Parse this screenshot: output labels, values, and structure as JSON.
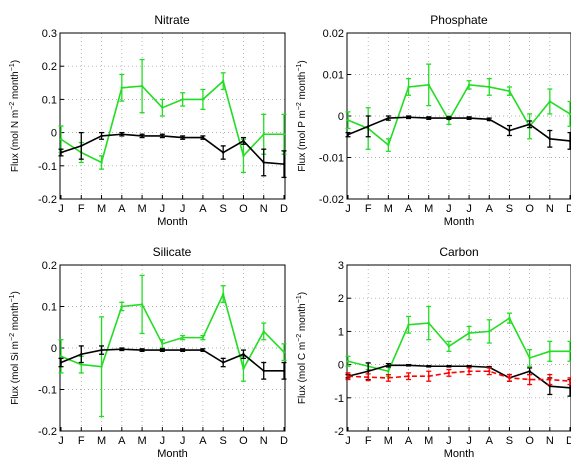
{
  "months_axis_label": "Month",
  "colors": {
    "green": "#22dd22",
    "black": "#000000",
    "red": "#ff0000"
  },
  "chart_data": [
    {
      "type": "line",
      "title": "Nitrate",
      "xlabel": "Month",
      "ylabel_parts": [
        "Flux (mol N m",
        "−2",
        " month",
        "−1",
        ")"
      ],
      "categories": [
        "J",
        "F",
        "M",
        "A",
        "M",
        "J",
        "J",
        "A",
        "S",
        "O",
        "N",
        "D"
      ],
      "ylim": [
        -0.2,
        0.3
      ],
      "yticks": [
        -0.2,
        -0.1,
        0,
        0.1,
        0.2,
        0.3
      ],
      "ytick_labels": [
        "-0.2",
        "-0.1",
        "0",
        "0.1",
        "0.2",
        "0.3"
      ],
      "series": [
        {
          "color": "#22dd22",
          "dash": false,
          "values": [
            -0.02,
            -0.06,
            -0.09,
            0.135,
            0.14,
            0.075,
            0.1,
            0.1,
            0.155,
            -0.07,
            -0.005,
            -0.005
          ],
          "errors": [
            0.04,
            0.03,
            0.02,
            0.04,
            0.08,
            0.025,
            0.02,
            0.03,
            0.025,
            0.05,
            0.06,
            0.06
          ]
        },
        {
          "color": "#000000",
          "dash": false,
          "values": [
            -0.06,
            -0.04,
            -0.01,
            -0.005,
            -0.01,
            -0.01,
            -0.015,
            -0.015,
            -0.06,
            -0.025,
            -0.09,
            -0.095
          ],
          "errors": [
            0.01,
            0.04,
            0.01,
            0.005,
            0.005,
            0.005,
            0.005,
            0.005,
            0.02,
            0.01,
            0.04,
            0.04
          ]
        }
      ]
    },
    {
      "type": "line",
      "title": "Phosphate",
      "xlabel": "Month",
      "ylabel_parts": [
        "Flux (mol P m",
        "−2",
        " month",
        "−1",
        ")"
      ],
      "categories": [
        "J",
        "F",
        "M",
        "A",
        "M",
        "J",
        "J",
        "A",
        "S",
        "O",
        "N",
        "D"
      ],
      "ylim": [
        -0.02,
        0.02
      ],
      "yticks": [
        -0.02,
        -0.01,
        0,
        0.01,
        0.02
      ],
      "ytick_labels": [
        "-0.02",
        "-0.01",
        "0",
        "0.01",
        "0.02"
      ],
      "series": [
        {
          "color": "#22dd22",
          "dash": false,
          "values": [
            -0.001,
            -0.003,
            -0.007,
            0.007,
            0.0075,
            -0.001,
            0.0075,
            0.007,
            0.006,
            -0.0025,
            0.0035,
            0.0005
          ],
          "errors": [
            0.002,
            0.005,
            0.0015,
            0.002,
            0.005,
            0.001,
            0.001,
            0.002,
            0.001,
            0.003,
            0.003,
            0.003
          ]
        },
        {
          "color": "#000000",
          "dash": false,
          "values": [
            -0.0045,
            -0.0025,
            -0.0005,
            -0.0003,
            -0.0005,
            -0.0005,
            -0.0005,
            -0.0008,
            -0.0035,
            -0.002,
            -0.0055,
            -0.006
          ],
          "errors": [
            0.0005,
            0.0025,
            0.0005,
            0.0003,
            0.0003,
            0.0003,
            0.0003,
            0.0003,
            0.0012,
            0.0008,
            0.002,
            0.002
          ]
        }
      ]
    },
    {
      "type": "line",
      "title": "Silicate",
      "xlabel": "Month",
      "ylabel_parts": [
        "Flux (mol Si m",
        "−2",
        " month",
        "−1",
        ")"
      ],
      "categories": [
        "J",
        "F",
        "M",
        "A",
        "M",
        "J",
        "J",
        "A",
        "S",
        "O",
        "N",
        "D"
      ],
      "ylim": [
        -0.2,
        0.2
      ],
      "yticks": [
        -0.2,
        -0.1,
        0,
        0.1,
        0.2
      ],
      "ytick_labels": [
        "-0.2",
        "-0.1",
        "0",
        "0.1",
        "0.2"
      ],
      "series": [
        {
          "color": "#22dd22",
          "dash": false,
          "values": [
            -0.02,
            -0.04,
            -0.045,
            0.1,
            0.105,
            0.01,
            0.025,
            0.025,
            0.13,
            -0.05,
            0.04,
            -0.01
          ],
          "errors": [
            0.04,
            0.02,
            0.12,
            0.01,
            0.07,
            0.01,
            0.005,
            0.005,
            0.02,
            0.03,
            0.02,
            0.02
          ]
        },
        {
          "color": "#000000",
          "dash": false,
          "values": [
            -0.035,
            -0.015,
            -0.005,
            -0.003,
            -0.005,
            -0.005,
            -0.005,
            -0.005,
            -0.035,
            -0.015,
            -0.055,
            -0.055
          ],
          "errors": [
            0.01,
            0.02,
            0.01,
            0.003,
            0.003,
            0.003,
            0.003,
            0.003,
            0.01,
            0.01,
            0.02,
            0.02
          ]
        }
      ]
    },
    {
      "type": "line",
      "title": "Carbon",
      "xlabel": "Month",
      "ylabel_parts": [
        "Flux (mol C m",
        "−2",
        " month",
        "−1",
        ")"
      ],
      "categories": [
        "J",
        "F",
        "M",
        "A",
        "M",
        "J",
        "J",
        "A",
        "S",
        "O",
        "N",
        "D"
      ],
      "ylim": [
        -2,
        3
      ],
      "yticks": [
        -2,
        -1,
        0,
        1,
        2,
        3
      ],
      "ytick_labels": [
        "-2",
        "-1",
        "0",
        "1",
        "2",
        "3"
      ],
      "series": [
        {
          "color": "#22dd22",
          "dash": false,
          "values": [
            0.1,
            -0.05,
            -0.2,
            1.2,
            1.25,
            0.55,
            0.95,
            1.0,
            1.4,
            0.2,
            0.4,
            0.4
          ],
          "errors": [
            0.15,
            0.1,
            0.15,
            0.25,
            0.5,
            0.15,
            0.2,
            0.35,
            0.15,
            0.25,
            0.3,
            0.3
          ]
        },
        {
          "color": "#000000",
          "dash": false,
          "values": [
            -0.35,
            -0.2,
            -0.02,
            -0.02,
            -0.05,
            -0.05,
            -0.05,
            -0.08,
            -0.4,
            -0.2,
            -0.65,
            -0.7
          ],
          "errors": [
            0.05,
            0.25,
            0.05,
            0.02,
            0.02,
            0.02,
            0.02,
            0.02,
            0.1,
            0.1,
            0.25,
            0.25
          ]
        },
        {
          "color": "#ff0000",
          "dash": true,
          "values": [
            -0.35,
            -0.38,
            -0.4,
            -0.35,
            -0.35,
            -0.25,
            -0.2,
            -0.2,
            -0.4,
            -0.45,
            -0.45,
            -0.5
          ],
          "errors": [
            0.1,
            0.1,
            0.1,
            0.1,
            0.15,
            0.1,
            0.1,
            0.1,
            0.1,
            0.15,
            0.15,
            0.1
          ]
        }
      ]
    }
  ]
}
